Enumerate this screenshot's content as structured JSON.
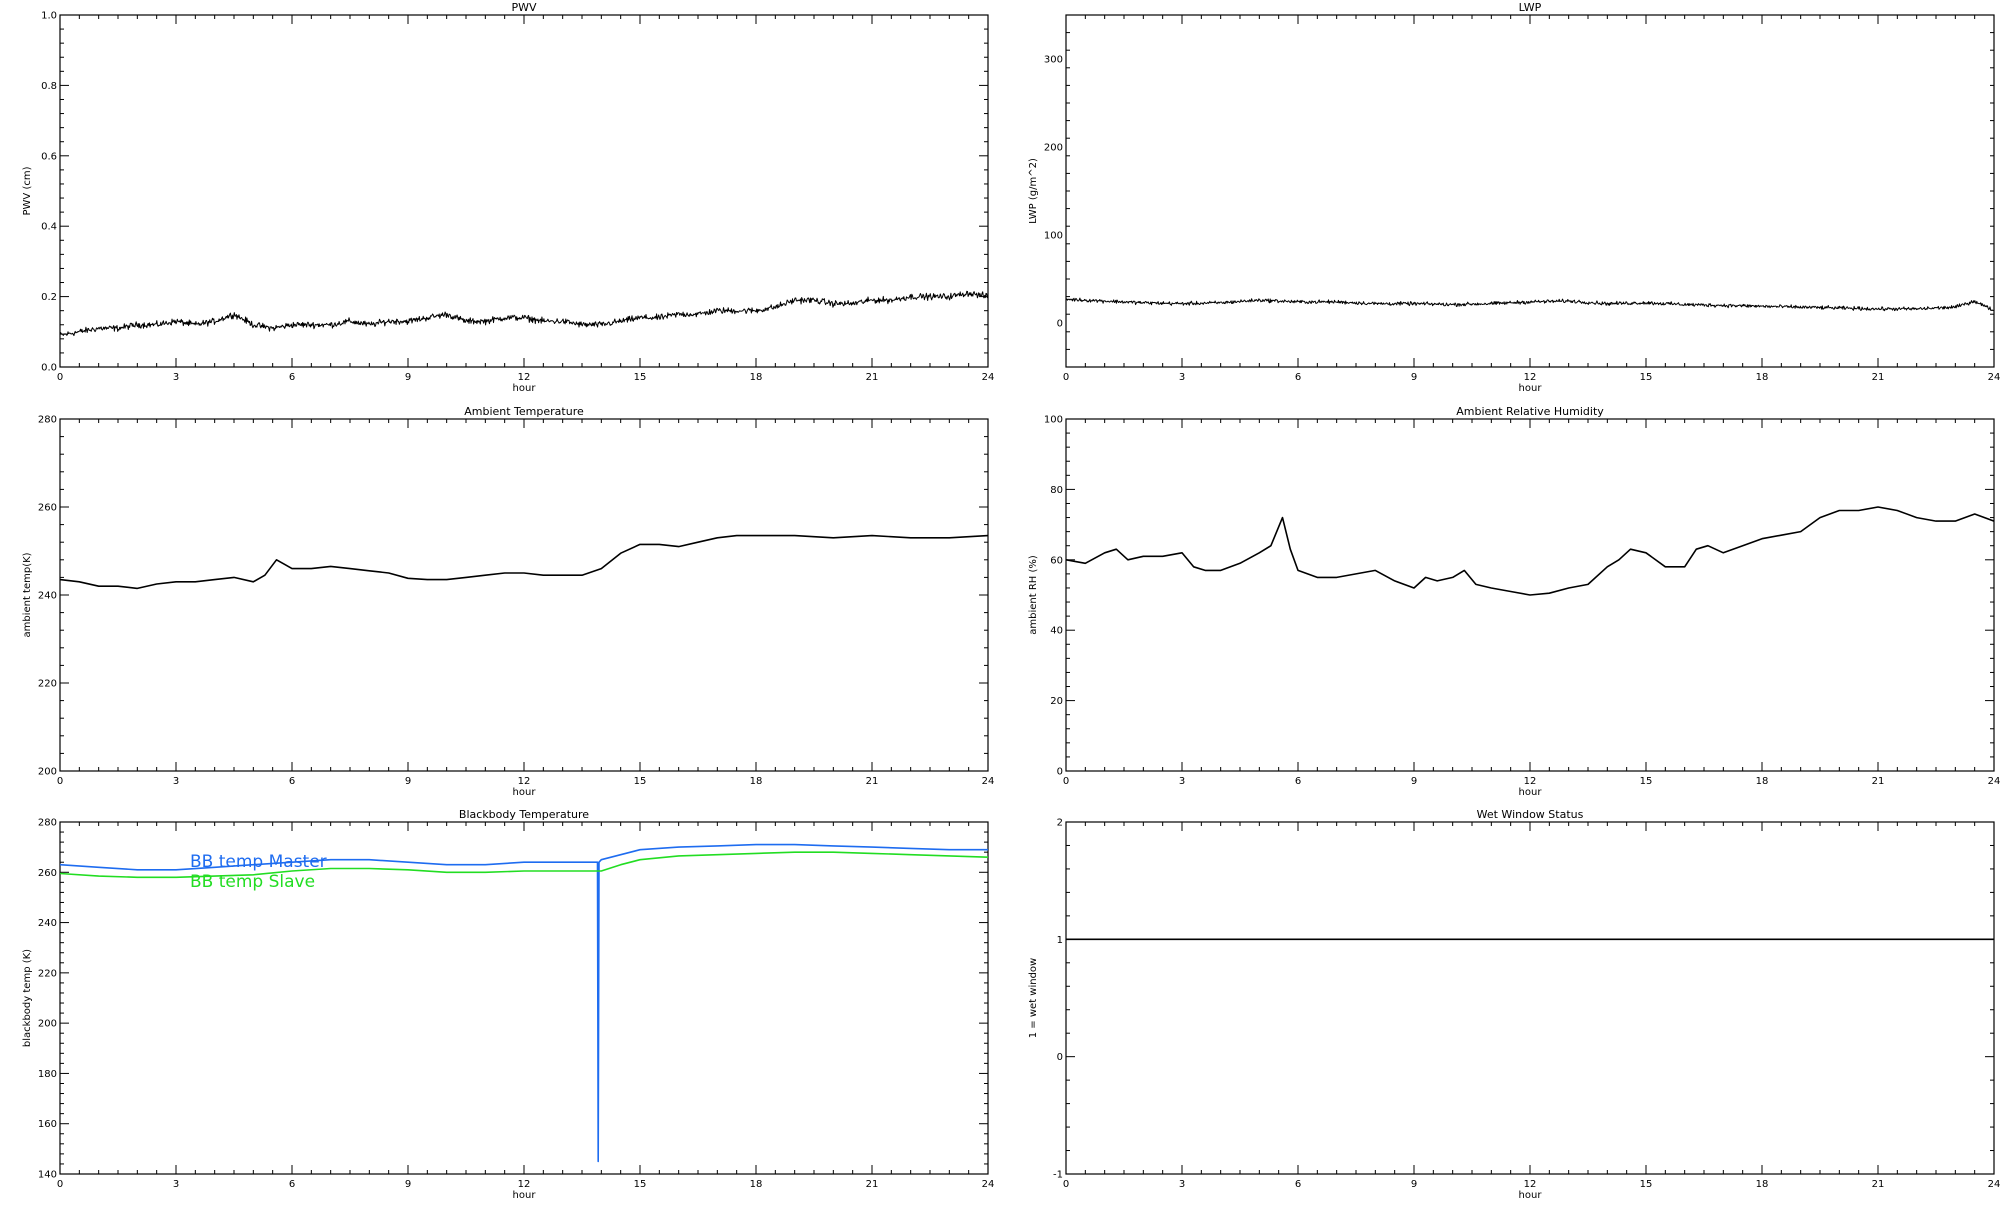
{
  "chart_data": [
    {
      "id": "pwv",
      "type": "line",
      "title": "PWV",
      "xlabel": "hour",
      "ylabel": "PWV (cm)",
      "xlim": [
        0,
        24
      ],
      "ylim": [
        0,
        1.0
      ],
      "xticks": [
        0,
        3,
        6,
        9,
        12,
        15,
        18,
        21,
        24
      ],
      "yticks": [
        0.0,
        0.2,
        0.4,
        0.6,
        0.8,
        1.0
      ],
      "ytick_labels": [
        "0.0",
        "0.2",
        "0.4",
        "0.6",
        "0.8",
        "1.0"
      ],
      "series": [
        {
          "color": "#000000",
          "style": "noisy",
          "x": [
            0,
            0.5,
            1,
            1.5,
            2,
            2.5,
            3,
            3.5,
            4,
            4.5,
            5,
            5.5,
            6,
            6.5,
            7,
            7.5,
            8,
            8.5,
            9,
            9.5,
            10,
            10.5,
            11,
            11.5,
            12,
            12.5,
            13,
            13.5,
            14,
            14.5,
            15,
            15.5,
            16,
            16.5,
            17,
            17.5,
            18,
            18.5,
            19,
            19.5,
            20,
            20.5,
            21,
            21.5,
            22,
            22.5,
            23,
            23.5,
            24
          ],
          "y": [
            0.09,
            0.1,
            0.11,
            0.11,
            0.12,
            0.12,
            0.13,
            0.12,
            0.13,
            0.15,
            0.12,
            0.11,
            0.12,
            0.12,
            0.12,
            0.13,
            0.12,
            0.13,
            0.13,
            0.14,
            0.15,
            0.13,
            0.13,
            0.14,
            0.14,
            0.13,
            0.13,
            0.12,
            0.12,
            0.13,
            0.14,
            0.14,
            0.15,
            0.15,
            0.16,
            0.16,
            0.16,
            0.17,
            0.19,
            0.19,
            0.18,
            0.18,
            0.19,
            0.19,
            0.2,
            0.2,
            0.2,
            0.21,
            0.2
          ],
          "noise": 0.013
        }
      ]
    },
    {
      "id": "lwp",
      "type": "line",
      "title": "LWP",
      "xlabel": "hour",
      "ylabel": "LWP (g/m^2)",
      "xlim": [
        0,
        24
      ],
      "ylim": [
        -50,
        350
      ],
      "xticks": [
        0,
        3,
        6,
        9,
        12,
        15,
        18,
        21,
        24
      ],
      "yticks": [
        0,
        100,
        200,
        300
      ],
      "ytick_labels": [
        "0",
        "100",
        "200",
        "300"
      ],
      "series": [
        {
          "color": "#000000",
          "style": "noisy",
          "x": [
            0,
            1,
            2,
            3,
            4,
            5,
            6,
            7,
            8,
            9,
            10,
            11,
            12,
            13,
            14,
            15,
            16,
            17,
            18,
            19,
            20,
            21,
            22,
            23,
            23.5,
            24
          ],
          "y": [
            27,
            25,
            23,
            22,
            23,
            26,
            24,
            24,
            22,
            22,
            21,
            22,
            24,
            25,
            22,
            23,
            21,
            20,
            19,
            18,
            17,
            16,
            16,
            18,
            25,
            14
          ],
          "noise": 3
        }
      ]
    },
    {
      "id": "ambient-temp",
      "type": "line",
      "title": "Ambient Temperature",
      "xlabel": "hour",
      "ylabel": "ambient temp(K)",
      "xlim": [
        0,
        24
      ],
      "ylim": [
        200,
        280
      ],
      "xticks": [
        0,
        3,
        6,
        9,
        12,
        15,
        18,
        21,
        24
      ],
      "yticks": [
        200,
        220,
        240,
        260,
        280
      ],
      "ytick_labels": [
        "200",
        "220",
        "240",
        "260",
        "280"
      ],
      "series": [
        {
          "color": "#000000",
          "style": "line",
          "x": [
            0,
            0.5,
            1,
            1.5,
            2,
            2.5,
            3,
            3.5,
            4,
            4.5,
            5,
            5.3,
            5.6,
            5.8,
            6,
            6.5,
            7,
            7.5,
            8,
            8.5,
            9,
            9.5,
            10,
            10.5,
            11,
            11.5,
            12,
            12.5,
            13,
            13.5,
            14,
            14.5,
            15,
            15.5,
            16,
            16.5,
            17,
            17.5,
            18,
            19,
            20,
            21,
            22,
            23,
            24
          ],
          "y": [
            243.5,
            243,
            242,
            242,
            241.5,
            242.5,
            243,
            243,
            243.5,
            244,
            243,
            244.5,
            248,
            247,
            246,
            246,
            246.5,
            246,
            245.5,
            245,
            243.8,
            243.5,
            243.5,
            244,
            244.5,
            245,
            245,
            244.5,
            244.5,
            244.5,
            246,
            249.5,
            251.5,
            251.5,
            251,
            252,
            253,
            253.5,
            253.5,
            253.5,
            253,
            253.5,
            253,
            253,
            253.5
          ]
        }
      ]
    },
    {
      "id": "ambient-rh",
      "type": "line",
      "title": "Ambient Relative Humidity",
      "xlabel": "hour",
      "ylabel": "ambient RH (%)",
      "xlim": [
        0,
        24
      ],
      "ylim": [
        0,
        100
      ],
      "xticks": [
        0,
        3,
        6,
        9,
        12,
        15,
        18,
        21,
        24
      ],
      "yticks": [
        0,
        20,
        40,
        60,
        80,
        100
      ],
      "ytick_labels": [
        "0",
        "20",
        "40",
        "60",
        "80",
        "100"
      ],
      "series": [
        {
          "color": "#000000",
          "style": "line",
          "x": [
            0,
            0.5,
            1,
            1.3,
            1.6,
            2,
            2.5,
            3,
            3.3,
            3.6,
            4,
            4.5,
            5,
            5.3,
            5.6,
            5.8,
            6,
            6.5,
            7,
            7.5,
            8,
            8.5,
            9,
            9.3,
            9.6,
            10,
            10.3,
            10.6,
            11,
            11.5,
            12,
            12.5,
            13,
            13.5,
            14,
            14.3,
            14.6,
            15,
            15.5,
            16,
            16.3,
            16.6,
            17,
            17.5,
            18,
            18.5,
            19,
            19.5,
            20,
            20.5,
            21,
            21.5,
            22,
            22.5,
            23,
            23.5,
            24
          ],
          "y": [
            60,
            59,
            62,
            63,
            60,
            61,
            61,
            62,
            58,
            57,
            57,
            59,
            62,
            64,
            72,
            63,
            57,
            55,
            55,
            56,
            57,
            54,
            52,
            55,
            54,
            55,
            57,
            53,
            52,
            51,
            50,
            50.5,
            52,
            53,
            58,
            60,
            63,
            62,
            58,
            58,
            63,
            64,
            62,
            64,
            66,
            67,
            68,
            72,
            74,
            74,
            75,
            74,
            72,
            71,
            71,
            73,
            71
          ]
        }
      ]
    },
    {
      "id": "blackbody-temp",
      "type": "line",
      "title": "Blackbody Temperature",
      "xlabel": "hour",
      "ylabel": "blackbody temp (K)",
      "xlim": [
        0,
        24
      ],
      "ylim": [
        140,
        280
      ],
      "xticks": [
        0,
        3,
        6,
        9,
        12,
        15,
        18,
        21,
        24
      ],
      "yticks": [
        140,
        160,
        180,
        200,
        220,
        240,
        260,
        280
      ],
      "ytick_labels": [
        "140",
        "160",
        "180",
        "200",
        "220",
        "240",
        "260",
        "280"
      ],
      "legend_entries": [
        {
          "label": "BB temp Master",
          "color": "#1e6cf0"
        },
        {
          "label": "BB temp Slave",
          "color": "#22dd22"
        }
      ],
      "series": [
        {
          "name": "BB temp Master",
          "color": "#1e6cf0",
          "style": "line",
          "x": [
            0,
            1,
            2,
            3,
            4,
            5,
            6,
            7,
            8,
            9,
            10,
            11,
            12,
            13,
            13.9,
            13.92,
            13.94,
            14,
            14.5,
            15,
            16,
            17,
            18,
            19,
            20,
            21,
            22,
            23,
            24
          ],
          "y": [
            263,
            262,
            261,
            261,
            262,
            263,
            264,
            265,
            265,
            264,
            263,
            263,
            264,
            264,
            264,
            145,
            264,
            265,
            267,
            269,
            270,
            270.5,
            271,
            271,
            270.5,
            270,
            269.5,
            269,
            269
          ]
        },
        {
          "name": "BB temp Slave",
          "color": "#22dd22",
          "style": "line",
          "x": [
            0,
            1,
            2,
            3,
            4,
            5,
            6,
            7,
            8,
            9,
            10,
            11,
            12,
            13,
            14,
            14.5,
            15,
            16,
            17,
            18,
            19,
            20,
            21,
            22,
            23,
            24
          ],
          "y": [
            259.5,
            258.5,
            258,
            258,
            258.5,
            259,
            260.5,
            261.5,
            261.5,
            261,
            260,
            260,
            260.5,
            260.5,
            260.5,
            263,
            265,
            266.5,
            267,
            267.5,
            268,
            268,
            267.5,
            267,
            266.5,
            266
          ]
        }
      ]
    },
    {
      "id": "wet-window",
      "type": "line",
      "title": "Wet Window Status",
      "xlabel": "hour",
      "ylabel": "1 = wet window",
      "xlim": [
        0,
        24
      ],
      "ylim": [
        -1,
        2
      ],
      "xticks": [
        0,
        3,
        6,
        9,
        12,
        15,
        18,
        21,
        24
      ],
      "yticks": [
        -1,
        0,
        1,
        2
      ],
      "ytick_labels": [
        "-1",
        "0",
        "1",
        "2"
      ],
      "series": [
        {
          "color": "#000000",
          "style": "line",
          "x": [
            0,
            24
          ],
          "y": [
            1,
            1
          ]
        }
      ]
    }
  ]
}
